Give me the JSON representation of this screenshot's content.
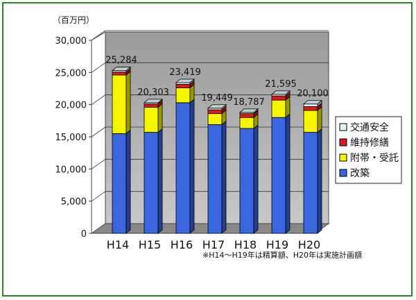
{
  "chart_data": {
    "type": "bar",
    "stacked": true,
    "unit_label": "（百万円）",
    "categories": [
      "H14",
      "H15",
      "H16",
      "H17",
      "H18",
      "H19",
      "H20"
    ],
    "series": [
      {
        "name": "改築",
        "color": "#3a66e0",
        "values": [
          15500,
          15700,
          20300,
          16900,
          16300,
          18000,
          15700
        ]
      },
      {
        "name": "附帯・受託",
        "color": "#f5f500",
        "values": [
          9100,
          3900,
          2300,
          1700,
          1700,
          2700,
          3400
        ]
      },
      {
        "name": "維持修繕",
        "color": "#dd1a1a",
        "values": [
          450,
          500,
          560,
          600,
          600,
          650,
          600
        ]
      },
      {
        "name": "交通安全",
        "color": "#dff4f7",
        "values": [
          234,
          203,
          259,
          249,
          187,
          245,
          400
        ]
      }
    ],
    "totals": [
      "25,284",
      "20,303",
      "23,419",
      "19,449",
      "18,787",
      "21,595",
      "20,100"
    ],
    "yticks": [
      "0",
      "5,000",
      "10,000",
      "15,000",
      "20,000",
      "25,000",
      "30,000"
    ],
    "ylim": [
      0,
      30000
    ],
    "grid": true,
    "legend_position": "right",
    "note": "※H14〜H19年は精算額、H20年は実施計画額"
  }
}
